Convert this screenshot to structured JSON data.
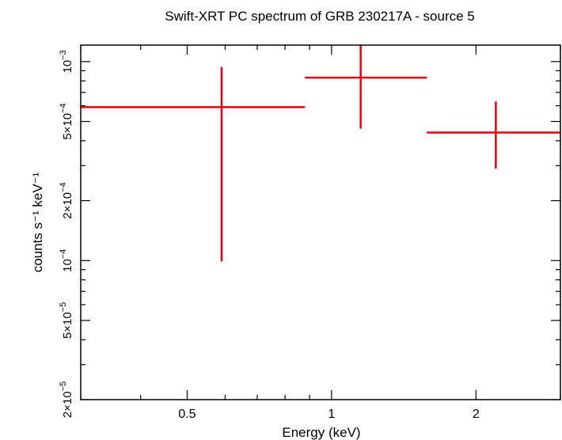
{
  "chart_data": {
    "type": "scatter",
    "title": "Swift-XRT PC spectrum of GRB 230217A - source 5",
    "xlabel": "Energy (keV)",
    "ylabel": "counts s⁻¹ keV⁻¹",
    "xscale": "log",
    "yscale": "log",
    "xlim": [
      0.3,
      3.0
    ],
    "ylim": [
      2e-05,
      0.00121
    ],
    "grid": false,
    "x_ticks": [
      {
        "value": 0.5,
        "label": "0.5"
      },
      {
        "value": 1,
        "label": "1"
      },
      {
        "value": 2,
        "label": "2"
      }
    ],
    "y_ticks": [
      {
        "value": 2e-05,
        "mant": "2",
        "exp": "−5"
      },
      {
        "value": 5e-05,
        "mant": "5",
        "exp": "−5"
      },
      {
        "value": 0.0001,
        "mant": "10",
        "exp": "−4"
      },
      {
        "value": 0.0002,
        "mant": "2",
        "exp": "−4"
      },
      {
        "value": 0.0005,
        "mant": "5",
        "exp": "−4"
      },
      {
        "value": 0.001,
        "mant": "10",
        "exp": "−3"
      }
    ],
    "series": [
      {
        "color": "#e8000b",
        "points": [
          {
            "x": 0.59,
            "xlo": 0.3,
            "xhi": 0.88,
            "y": 0.00059,
            "ylo": 9.9e-05,
            "yhi": 0.00094
          },
          {
            "x": 1.15,
            "xlo": 0.88,
            "xhi": 1.58,
            "y": 0.00083,
            "ylo": 0.00046,
            "yhi": 0.00121
          },
          {
            "x": 2.2,
            "xlo": 1.58,
            "xhi": 3.0,
            "y": 0.00044,
            "ylo": 0.00029,
            "yhi": 0.00063
          }
        ]
      }
    ]
  }
}
